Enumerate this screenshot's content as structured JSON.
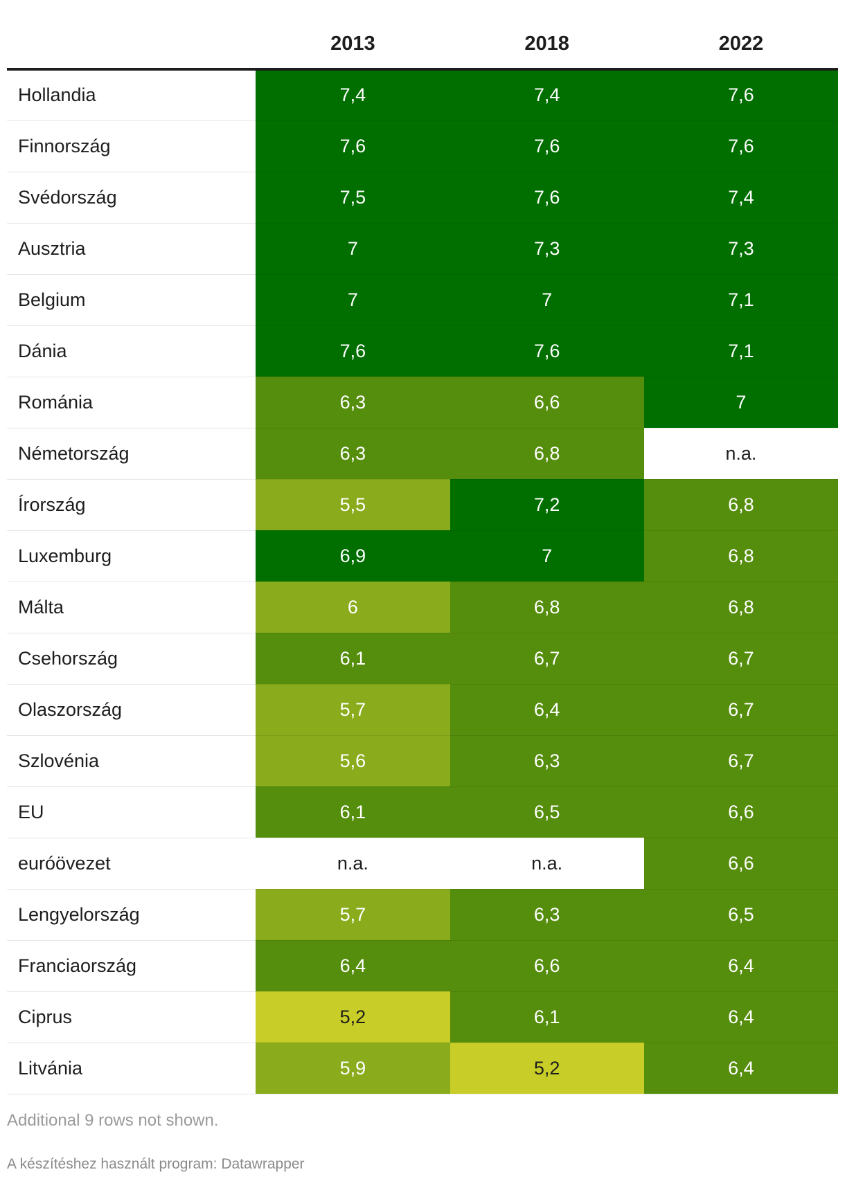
{
  "chart_data": {
    "type": "table",
    "columns": [
      "",
      "2013",
      "2018",
      "2022"
    ],
    "rows": [
      {
        "name": "Hollandia",
        "values": [
          "7,4",
          "7,4",
          "7,6"
        ]
      },
      {
        "name": "Finnország",
        "values": [
          "7,6",
          "7,6",
          "7,6"
        ]
      },
      {
        "name": "Svédország",
        "values": [
          "7,5",
          "7,6",
          "7,4"
        ]
      },
      {
        "name": "Ausztria",
        "values": [
          "7",
          "7,3",
          "7,3"
        ]
      },
      {
        "name": "Belgium",
        "values": [
          "7",
          "7",
          "7,1"
        ]
      },
      {
        "name": "Dánia",
        "values": [
          "7,6",
          "7,6",
          "7,1"
        ]
      },
      {
        "name": "Románia",
        "values": [
          "6,3",
          "6,6",
          "7"
        ]
      },
      {
        "name": "Németország",
        "values": [
          "6,3",
          "6,8",
          "n.a."
        ]
      },
      {
        "name": "Írország",
        "values": [
          "5,5",
          "7,2",
          "6,8"
        ]
      },
      {
        "name": "Luxemburg",
        "values": [
          "6,9",
          "7",
          "6,8"
        ]
      },
      {
        "name": "Málta",
        "values": [
          "6",
          "6,8",
          "6,8"
        ]
      },
      {
        "name": "Csehország",
        "values": [
          "6,1",
          "6,7",
          "6,7"
        ]
      },
      {
        "name": "Olaszország",
        "values": [
          "5,7",
          "6,4",
          "6,7"
        ]
      },
      {
        "name": "Szlovénia",
        "values": [
          "5,6",
          "6,3",
          "6,7"
        ]
      },
      {
        "name": "EU",
        "values": [
          "6,1",
          "6,5",
          "6,6"
        ]
      },
      {
        "name": "euróövezet",
        "values": [
          "n.a.",
          "n.a.",
          "6,6"
        ]
      },
      {
        "name": "Lengyelország",
        "values": [
          "5,7",
          "6,3",
          "6,5"
        ]
      },
      {
        "name": "Franciaország",
        "values": [
          "6,4",
          "6,6",
          "6,4"
        ]
      },
      {
        "name": "Ciprus",
        "values": [
          "5,2",
          "6,1",
          "6,4"
        ]
      },
      {
        "name": "Litvánia",
        "values": [
          "5,9",
          "5,2",
          "6,4"
        ]
      }
    ],
    "color_scale": {
      "high": "#006f00",
      "mid": "#558d0c",
      "low_mid": "#8aac1c",
      "low": "#c8cd28",
      "na": "#ffffff"
    }
  },
  "notes": "Additional 9 rows not shown.",
  "credit": "A készítéshez használt program: Datawrapper"
}
